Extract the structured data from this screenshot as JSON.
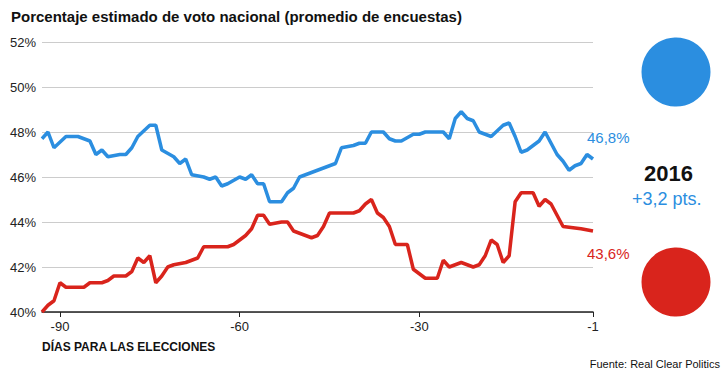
{
  "chart_data": {
    "type": "line",
    "title": "Porcentaje estimado de voto nacional (promedio de encuestas)",
    "x_label": "DÍAS PARA LAS ELECCIONES",
    "source": "Fuente: Real Clear Politics",
    "annotations": [
      "2016",
      "+3,2 pts."
    ],
    "xlim": [
      -93,
      -1
    ],
    "xticks": [
      -90,
      -60,
      -30,
      -1
    ],
    "ylim": [
      40,
      52
    ],
    "yticks": [
      {
        "value": 40,
        "label": "40%"
      },
      {
        "value": 42,
        "label": "42%"
      },
      {
        "value": 44,
        "label": "44%"
      },
      {
        "value": 46,
        "label": "46%"
      },
      {
        "value": 48,
        "label": "48%"
      },
      {
        "value": 50,
        "label": "50%"
      },
      {
        "value": 52,
        "label": "52%"
      }
    ],
    "grid": true,
    "series": [
      {
        "color": "#2b8ee0",
        "end_label": "46,8%",
        "x": [
          -93,
          -92,
          -91,
          -89,
          -87,
          -85,
          -84,
          -83,
          -82,
          -80,
          -79,
          -78,
          -77,
          -75,
          -74,
          -73,
          -71,
          -70,
          -69,
          -68,
          -66,
          -65,
          -64,
          -63,
          -62,
          -60,
          -59,
          -58,
          -57,
          -56,
          -55,
          -53,
          -52,
          -51,
          -50,
          -48,
          -47,
          -45,
          -44,
          -43,
          -41,
          -40,
          -39,
          -38,
          -36,
          -35,
          -34,
          -33,
          -31,
          -30,
          -29,
          -27,
          -26,
          -25,
          -24,
          -23,
          -22,
          -21,
          -20,
          -19,
          -18,
          -16,
          -15,
          -14,
          -13,
          -12,
          -10,
          -9,
          -8,
          -7,
          -6,
          -5,
          -4,
          -3,
          -2,
          -1
        ],
        "values": [
          47.7,
          48.0,
          47.3,
          47.8,
          47.8,
          47.6,
          47.0,
          47.2,
          46.9,
          47.0,
          47.0,
          47.3,
          47.8,
          48.3,
          48.3,
          47.2,
          46.9,
          46.6,
          46.8,
          46.1,
          46.0,
          45.9,
          46.0,
          45.6,
          45.7,
          46.0,
          45.9,
          46.1,
          45.7,
          45.7,
          44.9,
          44.9,
          45.3,
          45.5,
          46.0,
          46.2,
          46.3,
          46.5,
          46.6,
          47.3,
          47.4,
          47.5,
          47.5,
          48.0,
          48.0,
          47.7,
          47.6,
          47.6,
          47.9,
          47.9,
          48.0,
          48.0,
          48.0,
          47.7,
          48.6,
          48.9,
          48.6,
          48.5,
          48.0,
          47.9,
          47.8,
          48.3,
          48.4,
          47.8,
          47.1,
          47.2,
          47.6,
          48.0,
          47.5,
          47.0,
          46.7,
          46.3,
          46.5,
          46.6,
          47.0,
          46.8
        ]
      },
      {
        "color": "#d9241c",
        "end_label": "43,6%",
        "x": [
          -93,
          -92,
          -91,
          -90,
          -89,
          -87,
          -86,
          -85,
          -83,
          -82,
          -81,
          -79,
          -78,
          -77,
          -76,
          -75,
          -74,
          -73,
          -72,
          -71,
          -69,
          -67,
          -66,
          -64,
          -62,
          -61,
          -59,
          -58,
          -57,
          -56,
          -55,
          -53,
          -52,
          -51,
          -49,
          -48,
          -47,
          -46,
          -45,
          -43,
          -41,
          -40,
          -39,
          -38,
          -37,
          -36,
          -35,
          -34,
          -32,
          -31,
          -30,
          -29,
          -27,
          -26,
          -25,
          -23,
          -21,
          -20,
          -19,
          -18,
          -17,
          -16,
          -15,
          -14,
          -13,
          -11,
          -10,
          -9,
          -8,
          -6,
          -3,
          -1
        ],
        "values": [
          40.0,
          40.3,
          40.5,
          41.3,
          41.1,
          41.1,
          41.1,
          41.3,
          41.3,
          41.4,
          41.6,
          41.6,
          41.8,
          42.4,
          42.2,
          42.5,
          41.3,
          41.6,
          42.0,
          42.1,
          42.2,
          42.4,
          42.9,
          42.9,
          42.9,
          43.0,
          43.4,
          43.7,
          44.3,
          44.3,
          43.9,
          44.0,
          44.0,
          43.6,
          43.4,
          43.3,
          43.4,
          43.8,
          44.4,
          44.4,
          44.4,
          44.5,
          44.8,
          45.0,
          44.4,
          44.2,
          43.8,
          43.0,
          43.0,
          41.9,
          41.7,
          41.5,
          41.5,
          42.3,
          42.0,
          42.2,
          42.0,
          42.1,
          42.5,
          43.2,
          43.0,
          42.2,
          42.5,
          44.9,
          45.3,
          45.3,
          44.7,
          45.0,
          44.8,
          43.8,
          43.7,
          43.6
        ]
      }
    ]
  }
}
